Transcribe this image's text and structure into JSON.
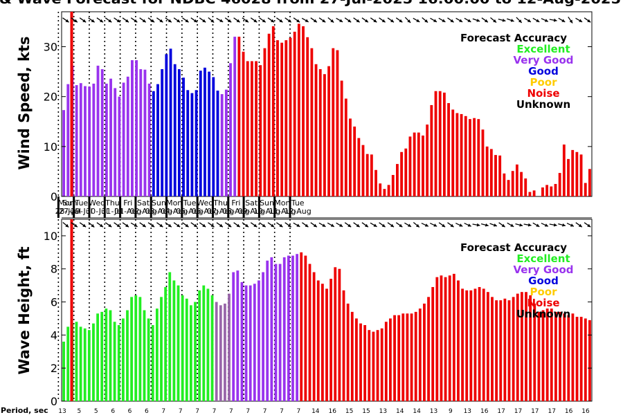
{
  "title": "& Wave Forecast for NDBC 46028 from 27-Jul-2025 16:00:00 to 12-Aug-2025",
  "legend": {
    "title": "Forecast Accuracy",
    "items": [
      {
        "label": "Excellent",
        "color": "#22ee22"
      },
      {
        "label": "Very Good",
        "color": "#9933ee"
      },
      {
        "label": "Good",
        "color": "#0000dd"
      },
      {
        "label": "Poor",
        "color": "#ffcc00"
      },
      {
        "label": "Noise",
        "color": "#ee0000"
      },
      {
        "label": "Unknown",
        "color": "#000000"
      }
    ]
  },
  "days": [
    {
      "dow": "Sun",
      "date": "27-Jul"
    },
    {
      "dow": "Mon",
      "date": "28-Jul"
    },
    {
      "dow": "Tue",
      "date": "29-Jul"
    },
    {
      "dow": "Wed",
      "date": "30-Jul"
    },
    {
      "dow": "Thu",
      "date": "31-Jul"
    },
    {
      "dow": "Fri",
      "date": "01-Aug"
    },
    {
      "dow": "Sat",
      "date": "02-Aug"
    },
    {
      "dow": "Sun",
      "date": "03-Aug"
    },
    {
      "dow": "Mon",
      "date": "04-Aug"
    },
    {
      "dow": "Tue",
      "date": "05-Aug"
    },
    {
      "dow": "Wed",
      "date": "06-Aug"
    },
    {
      "dow": "Thu",
      "date": "07-Aug"
    },
    {
      "dow": "Fri",
      "date": "08-Aug"
    },
    {
      "dow": "Sat",
      "date": "09-Aug"
    },
    {
      "dow": "Sun",
      "date": "10-Aug"
    },
    {
      "dow": "Mon",
      "date": "11-Aug"
    },
    {
      "dow": "Tue",
      "date": "12-Aug"
    }
  ],
  "period_label": "Period, sec",
  "periods": [
    "13",
    "5",
    "5",
    "6",
    "6",
    "6",
    "7",
    "7",
    "7",
    "7",
    "7",
    "7",
    "7",
    "7",
    "7",
    "14",
    "16",
    "15",
    "15",
    "13",
    "14",
    "14",
    "13",
    "9",
    "13",
    "16",
    "17",
    "17",
    "17",
    "17",
    "16",
    "16"
  ],
  "chart_data": [
    {
      "type": "bar",
      "ylabel": "Wind Speed, kts",
      "ylim": [
        0,
        37
      ],
      "yticks": [
        0,
        10,
        20,
        30
      ],
      "x_start": "27-Jul-2025 16:00",
      "x_step_hours": 3,
      "colors": {
        "V": "#9933ee",
        "G": "#0000dd",
        "N": "#ee0000"
      },
      "values": [
        17.3,
        22.5,
        26.2,
        22.3,
        22.7,
        22.1,
        22.0,
        22.6,
        26.2,
        25.5,
        22.6,
        23.6,
        21.7,
        20.0,
        22.8,
        24.0,
        27.3,
        27.3,
        25.5,
        25.4,
        22.6,
        21.1,
        22.5,
        25.5,
        28.5,
        29.6,
        26.5,
        25.5,
        23.8,
        21.3,
        20.7,
        21.3,
        25.2,
        25.8,
        25.0,
        23.9,
        21.2,
        20.5,
        21.4,
        26.7,
        32.0,
        32.0,
        29.0,
        27.1,
        27.1,
        27.1,
        26.3,
        29.7,
        32.6,
        34.1,
        31.3,
        30.8,
        31.3,
        31.8,
        33.0,
        34.6,
        34.1,
        31.9,
        29.7,
        26.5,
        25.5,
        24.5,
        26.1,
        29.7,
        29.3,
        23.2,
        19.6,
        15.6,
        14.0,
        11.7,
        10.3,
        8.5,
        8.4,
        5.3,
        2.6,
        1.5,
        2.3,
        4.3,
        6.5,
        8.9,
        9.6,
        12.0,
        12.8,
        12.8,
        12.2,
        14.4,
        18.3,
        21.1,
        21.1,
        20.8,
        18.7,
        17.4,
        16.7,
        16.5,
        16.1,
        15.5,
        15.7,
        15.5,
        13.4,
        10.0,
        9.5,
        8.3,
        8.2,
        4.6,
        3.3,
        5.1,
        6.4,
        4.9,
        3.6,
        0.9,
        1.2,
        0.0,
        1.8,
        2.3,
        2.0,
        2.5,
        4.7,
        10.4,
        7.5,
        9.3,
        8.9,
        8.4,
        2.7,
        5.5
      ],
      "accuracy": "VVVVVVVVVVVVVVVVVVVVVGGGGGGGGGGGGGGGGVVVVNNNNNNNNNNNNNNNNNNNNNNNNNNNNNNNNNNNNNNNNNNNNNNNNNNNNNNNNNNNNNNNNNNNNNNNNNNNNNNNNNNNNNNNNNNNNNN",
      "arrow_angles": [
        -35,
        -35,
        -35,
        -35,
        -35,
        -35,
        -35,
        -35,
        -35,
        -35,
        -35,
        -35,
        -35,
        -35,
        -35,
        -35,
        -35,
        -40,
        -30,
        -35,
        -35,
        -35,
        -35,
        -35,
        -35,
        -35,
        -35,
        -35,
        -30,
        -35,
        -35,
        -40,
        -30,
        -35,
        -35,
        -35,
        -35,
        -35,
        -35,
        -35,
        -45,
        -30,
        -40,
        -30,
        -30,
        -35,
        -30,
        -30,
        -20,
        -35,
        -40,
        -15,
        -20,
        -45,
        -30,
        -30,
        -25,
        -10,
        -30,
        -55,
        -30,
        -35
      ]
    },
    {
      "type": "bar",
      "ylabel": "Wave Height, ft",
      "ylim": [
        0,
        11
      ],
      "yticks": [
        0,
        2,
        4,
        6,
        8,
        10
      ],
      "x_start": "27-Jul-2025 16:00",
      "x_step_hours": 3,
      "colors": {
        "E": "#22ee22",
        "W": "#9966aa",
        "V": "#9933ee",
        "N": "#ee0000"
      },
      "values": [
        3.6,
        4.5,
        4.7,
        4.8,
        4.5,
        4.4,
        4.3,
        4.7,
        5.3,
        5.4,
        5.6,
        5.5,
        4.8,
        4.6,
        5.0,
        5.5,
        6.3,
        6.4,
        6.3,
        5.5,
        5.0,
        4.6,
        5.6,
        6.3,
        6.9,
        7.8,
        7.3,
        7.0,
        6.4,
        6.2,
        5.8,
        6.0,
        6.7,
        7.0,
        6.8,
        6.4,
        6.0,
        5.8,
        5.9,
        6.5,
        7.8,
        7.9,
        7.2,
        7.0,
        7.0,
        7.1,
        7.3,
        7.8,
        8.5,
        8.7,
        8.3,
        8.3,
        8.7,
        8.8,
        8.8,
        8.9,
        9.0,
        8.8,
        8.3,
        7.8,
        7.3,
        7.1,
        6.8,
        7.4,
        8.1,
        8.0,
        6.7,
        5.9,
        5.4,
        5.0,
        4.7,
        4.6,
        4.3,
        4.2,
        4.3,
        4.4,
        4.8,
        5.0,
        5.2,
        5.2,
        5.3,
        5.3,
        5.3,
        5.4,
        5.6,
        5.9,
        6.3,
        6.9,
        7.5,
        7.6,
        7.5,
        7.6,
        7.7,
        7.3,
        6.8,
        6.7,
        6.7,
        6.8,
        6.9,
        6.8,
        6.6,
        6.3,
        6.1,
        6.1,
        6.2,
        6.1,
        6.3,
        6.5,
        6.6,
        6.6,
        6.4,
        5.9,
        5.4,
        5.5,
        5.6,
        5.6,
        5.4,
        5.4,
        5.3,
        5.2,
        5.3,
        5.1,
        5.1,
        5.0,
        4.9
      ],
      "accuracy": "EEEEEEEEEEEEEEEEEEEEEEEEEEEEEEEEEEEEWWWWVVVVVVVVVVVVVVVVNNNNNNNNNNNNNNNNNNNNNNNNNNNNNNNNNNNNNNNNNNNNNNNNNNNNNNNNNNNNNNNNNNNNNNNNNNNNNNNNNN",
      "arrow_angles": [
        -40,
        -35,
        -35,
        -40,
        -35,
        -35,
        -35,
        -35,
        -30,
        -35,
        -35,
        -35,
        -35,
        -35,
        -35,
        -35,
        -35,
        -35,
        -35,
        -35,
        -35,
        -35,
        -35,
        -35,
        -35,
        -35,
        -35,
        -30,
        -35,
        -35,
        -30,
        -30,
        -30,
        -35,
        -35,
        -35,
        -30,
        -35,
        -35,
        -35,
        -30,
        -40,
        -25,
        -25,
        -35,
        -35,
        -25,
        -25,
        -10,
        -15,
        -20,
        -35,
        -30,
        -15,
        -10,
        -30,
        -25,
        -10,
        -15,
        -25,
        -35,
        -35
      ]
    }
  ]
}
